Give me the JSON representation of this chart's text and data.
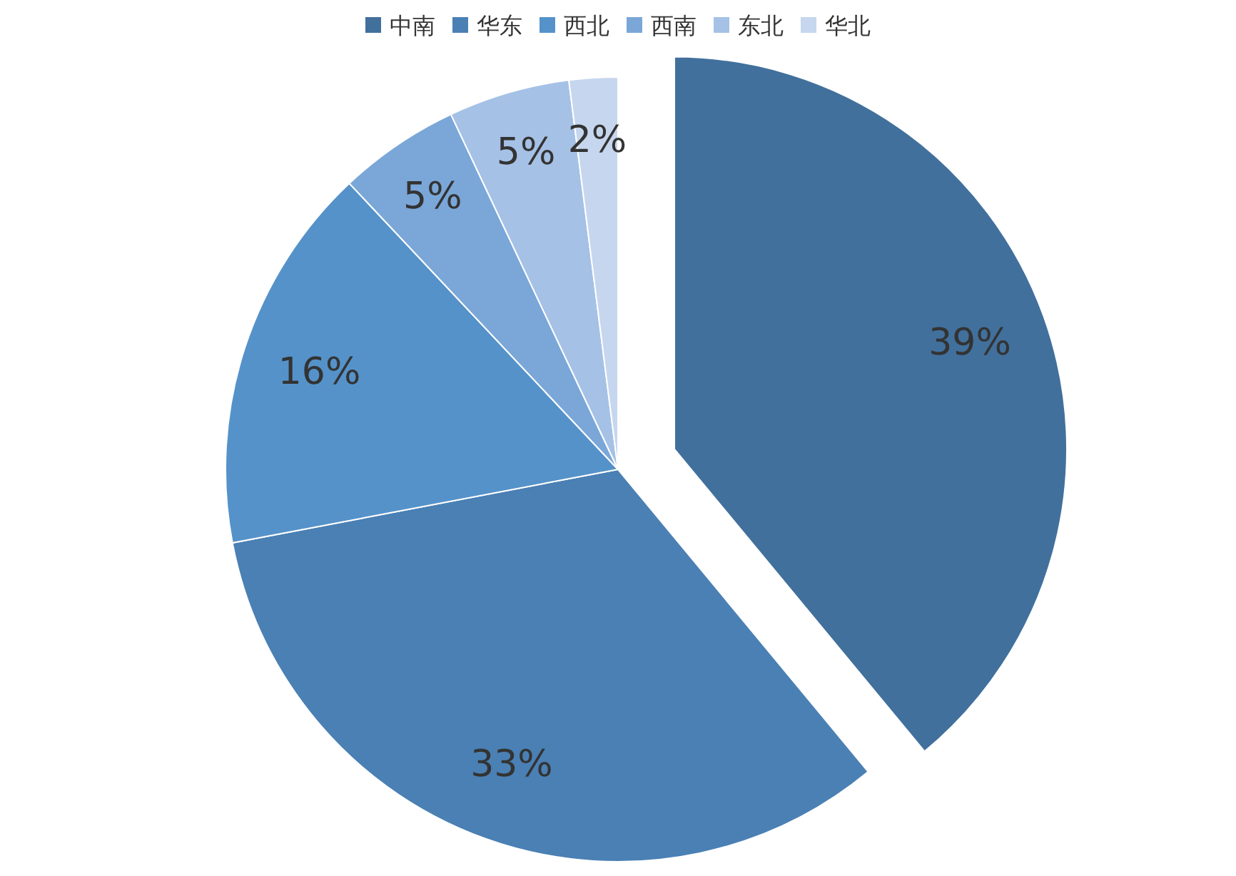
{
  "chart_data": {
    "type": "pie",
    "categories": [
      "中南",
      "华东",
      "西北",
      "西南",
      "东北",
      "华北"
    ],
    "values": [
      39,
      33,
      16,
      5,
      5,
      2
    ],
    "colors": [
      "#41709c",
      "#4a80b4",
      "#5592c9",
      "#7aa7d8",
      "#a5c1e6",
      "#c6d6ee"
    ],
    "value_labels": [
      "39%",
      "33%",
      "16%",
      "5%",
      "5%",
      "2%"
    ],
    "legend": "top"
  }
}
